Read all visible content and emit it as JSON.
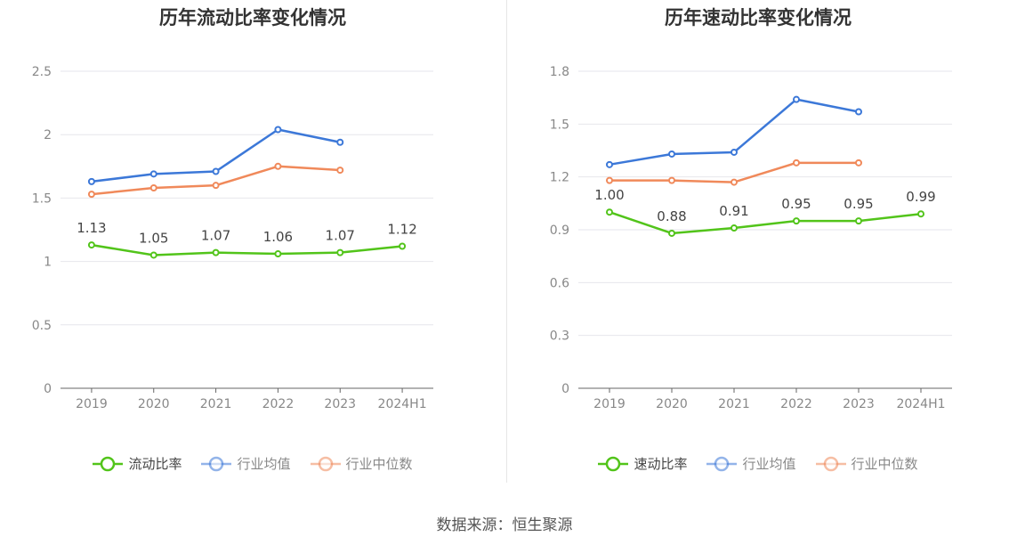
{
  "source_label": "数据来源：恒生聚源",
  "chart_data": [
    {
      "type": "line",
      "title": "历年流动比率变化情况",
      "categories": [
        "2019",
        "2020",
        "2021",
        "2022",
        "2023",
        "2024H1"
      ],
      "ylim": [
        0,
        2.5
      ],
      "yticks": [
        "0",
        "0.5",
        "1",
        "1.5",
        "2",
        "2.5"
      ],
      "grid": true,
      "legend_position": "bottom",
      "series": [
        {
          "name": "流动比率",
          "color": "#52c41a",
          "values": [
            1.13,
            1.05,
            1.07,
            1.06,
            1.07,
            1.12
          ],
          "labels": [
            "1.13",
            "1.05",
            "1.07",
            "1.06",
            "1.07",
            "1.12"
          ]
        },
        {
          "name": "行业均值",
          "color": "#3c78d8",
          "values": [
            1.63,
            1.69,
            1.71,
            2.04,
            1.94,
            null
          ]
        },
        {
          "name": "行业中位数",
          "color": "#f0895a",
          "values": [
            1.53,
            1.58,
            1.6,
            1.75,
            1.72,
            null
          ]
        }
      ]
    },
    {
      "type": "line",
      "title": "历年速动比率变化情况",
      "categories": [
        "2019",
        "2020",
        "2021",
        "2022",
        "2023",
        "2024H1"
      ],
      "ylim": [
        0,
        1.8
      ],
      "yticks": [
        "0",
        "0.3",
        "0.6",
        "0.9",
        "1.2",
        "1.5",
        "1.8"
      ],
      "grid": true,
      "legend_position": "bottom",
      "series": [
        {
          "name": "速动比率",
          "color": "#52c41a",
          "values": [
            1.0,
            0.88,
            0.91,
            0.95,
            0.95,
            0.99
          ],
          "labels": [
            "1.00",
            "0.88",
            "0.91",
            "0.95",
            "0.95",
            "0.99"
          ]
        },
        {
          "name": "行业均值",
          "color": "#3c78d8",
          "values": [
            1.27,
            1.33,
            1.34,
            1.64,
            1.57,
            null
          ]
        },
        {
          "name": "行业中位数",
          "color": "#f0895a",
          "values": [
            1.18,
            1.18,
            1.17,
            1.28,
            1.28,
            null
          ]
        }
      ]
    }
  ]
}
